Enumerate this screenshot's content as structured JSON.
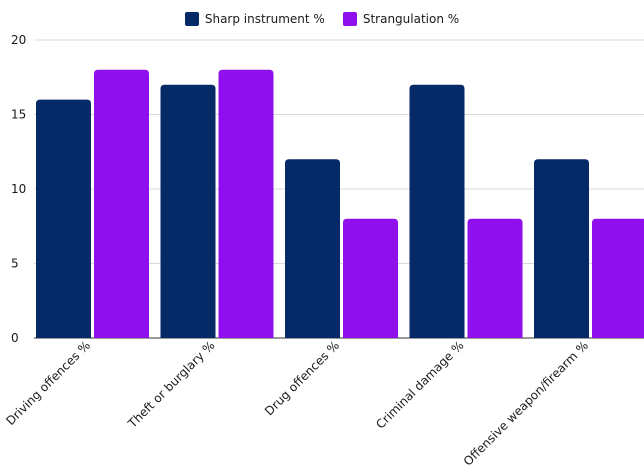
{
  "chart_data": {
    "type": "bar",
    "categories": [
      "Driving offences %",
      "Theft or burglary %",
      "Drug offences %",
      "Criminal damage %",
      "Offensive weapon/firearm %"
    ],
    "series": [
      {
        "name": "Sharp instrument %",
        "values": [
          16,
          17,
          12,
          17,
          12
        ],
        "color": "#052a67"
      },
      {
        "name": "Strangulation %",
        "values": [
          18,
          18,
          8,
          8,
          8
        ],
        "color": "#8f10ec"
      }
    ],
    "yticks": [
      0,
      5,
      10,
      15,
      20
    ],
    "ylim": [
      0,
      20
    ],
    "grid": true,
    "legend_position": "top-center"
  }
}
